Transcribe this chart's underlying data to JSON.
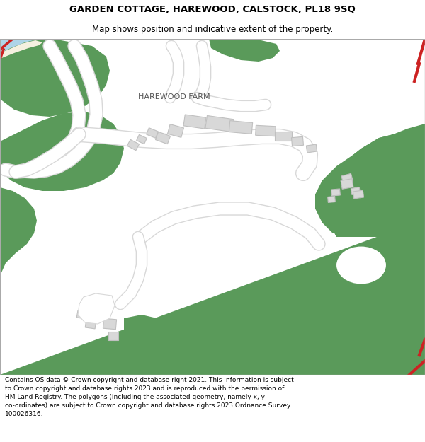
{
  "title_line1": "GARDEN COTTAGE, HAREWOOD, CALSTOCK, PL18 9SQ",
  "title_line2": "Map shows position and indicative extent of the property.",
  "footer_text": "Contains OS data © Crown copyright and database right 2021. This information is subject\nto Crown copyright and database rights 2023 and is reproduced with the permission of\nHM Land Registry. The polygons (including the associated geometry, namely x, y\nco-ordinates) are subject to Crown copyright and database rights 2023 Ordnance Survey\n100026316.",
  "bg_color": "#ffffff",
  "green_color": "#5a9a5a",
  "white": "#ffffff",
  "light_gray": "#d8d8d8",
  "road_gray": "#e0e0e0",
  "water_blue": "#aed4e8",
  "cream": "#f5f0e0",
  "red_line": "#cc2222",
  "farm_label": "HAREWOOD FARM"
}
